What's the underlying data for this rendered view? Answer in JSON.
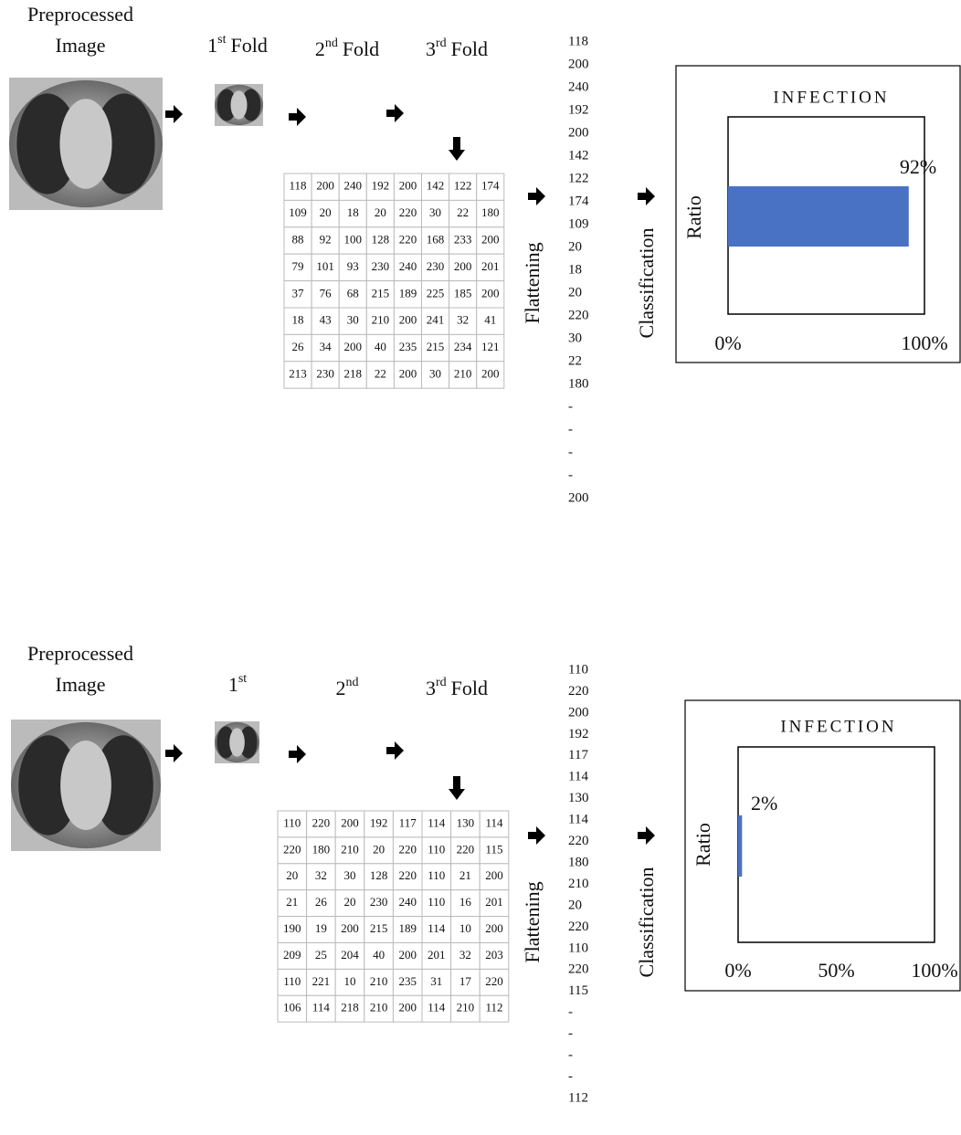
{
  "panels": [
    {
      "title_lines": [
        "Preprocessed",
        "Image"
      ],
      "folds": [
        {
          "number": "1",
          "suffix": "st",
          "label": "Fold"
        },
        {
          "number": "2",
          "suffix": "nd",
          "label": "Fold"
        },
        {
          "number": "3",
          "suffix": "rd",
          "label": "Fold"
        }
      ],
      "matrix": [
        [
          118,
          200,
          240,
          192,
          200,
          142,
          122,
          174
        ],
        [
          109,
          20,
          18,
          20,
          220,
          30,
          22,
          180
        ],
        [
          88,
          92,
          100,
          128,
          220,
          168,
          233,
          200
        ],
        [
          79,
          101,
          93,
          230,
          240,
          230,
          200,
          201
        ],
        [
          37,
          76,
          68,
          215,
          189,
          225,
          185,
          200
        ],
        [
          18,
          43,
          30,
          210,
          200,
          241,
          32,
          41
        ],
        [
          26,
          34,
          200,
          40,
          235,
          215,
          234,
          121
        ],
        [
          213,
          230,
          218,
          22,
          200,
          30,
          210,
          200
        ]
      ],
      "flattened": [
        118,
        200,
        240,
        192,
        200,
        142,
        122,
        174,
        109,
        20,
        18,
        20,
        220,
        30,
        22,
        180,
        "-",
        "-",
        "-",
        "-",
        200
      ],
      "flatten_label": "Flattening",
      "classification_label": "Classification",
      "chart": {
        "title": "INFECTION",
        "y_label": "Ratio",
        "value": 92,
        "value_label": "92%",
        "color": "#4a72c4",
        "xlim": [
          0,
          100
        ],
        "xticks": [
          {
            "value": 0,
            "label": "0%"
          },
          {
            "value": 100,
            "label": "100%"
          }
        ]
      }
    },
    {
      "title_lines": [
        "Preprocessed",
        "Image"
      ],
      "folds": [
        {
          "number": "1",
          "suffix": "st"
        },
        {
          "number": "2",
          "suffix": "nd"
        },
        {
          "number": "3",
          "suffix": "rd",
          "label": "Fold"
        }
      ],
      "matrix": [
        [
          110,
          220,
          200,
          192,
          117,
          114,
          130,
          114
        ],
        [
          220,
          180,
          210,
          20,
          220,
          110,
          220,
          115
        ],
        [
          20,
          32,
          30,
          128,
          220,
          110,
          21,
          200
        ],
        [
          21,
          26,
          20,
          230,
          240,
          110,
          16,
          201
        ],
        [
          190,
          19,
          200,
          215,
          189,
          114,
          10,
          200
        ],
        [
          209,
          25,
          204,
          40,
          200,
          201,
          32,
          203
        ],
        [
          110,
          221,
          10,
          210,
          235,
          31,
          17,
          220
        ],
        [
          106,
          114,
          218,
          210,
          200,
          114,
          210,
          112
        ]
      ],
      "flattened": [
        110,
        220,
        200,
        192,
        117,
        114,
        130,
        114,
        220,
        180,
        210,
        20,
        220,
        110,
        220,
        115,
        "-",
        "-",
        "-",
        "-",
        112
      ],
      "flatten_label": "Flattening",
      "classification_label": "Classification",
      "chart": {
        "title": "INFECTION",
        "y_label": "Ratio",
        "value": 2,
        "value_label": "2%",
        "color": "#4a72c4",
        "xlim": [
          0,
          100
        ],
        "xticks": [
          {
            "value": 0,
            "label": "0%"
          },
          {
            "value": 50,
            "label": "50%"
          },
          {
            "value": 100,
            "label": "100%"
          }
        ]
      }
    }
  ]
}
